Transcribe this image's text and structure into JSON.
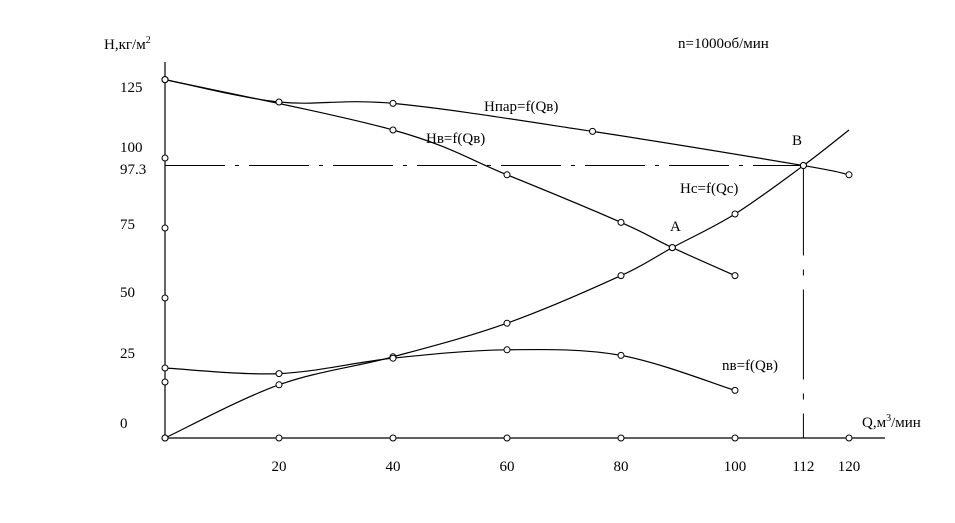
{
  "chart_data": {
    "type": "line",
    "title": "n=1000об/мин",
    "ylabel": "H,кг/м",
    "ylabel_sup": "2",
    "xlabel": "Q,м",
    "xlabel_sup": "3",
    "xlabel_tail": "/мин",
    "xlim": [
      0,
      128
    ],
    "ylim": [
      0,
      135
    ],
    "x_ticks": [
      "20",
      "40",
      "60",
      "80",
      "100",
      "112",
      "120"
    ],
    "y_ticks": [
      "0",
      "25",
      "50",
      "75",
      "100",
      "125"
    ],
    "y_extra_tick": "97.3",
    "series": [
      {
        "name": "Hпар=f(Qв)",
        "points": [
          [
            0,
            128
          ],
          [
            20,
            120
          ],
          [
            40,
            119.5
          ],
          [
            75,
            109.5
          ],
          [
            112,
            97.3
          ],
          [
            120,
            94
          ]
        ]
      },
      {
        "name": "Hв=f(Qв)",
        "points": [
          [
            0,
            128
          ],
          [
            40,
            110
          ],
          [
            60,
            94
          ],
          [
            80,
            77
          ],
          [
            89,
            68
          ],
          [
            100,
            58
          ]
        ]
      },
      {
        "name": "Hc=f(Qc)",
        "points": [
          [
            0,
            0
          ],
          [
            20,
            19
          ],
          [
            40,
            29
          ],
          [
            60,
            41
          ],
          [
            80,
            58
          ],
          [
            89,
            68
          ],
          [
            100,
            80
          ],
          [
            112,
            97.3
          ],
          [
            120,
            110
          ]
        ],
        "markers": [
          [
            0,
            0
          ],
          [
            20,
            19
          ],
          [
            40,
            29
          ],
          [
            60,
            41
          ],
          [
            80,
            58
          ],
          [
            89,
            68
          ],
          [
            100,
            80
          ],
          [
            112,
            97.3
          ]
        ]
      },
      {
        "name": "nв=f(Qв)",
        "points": [
          [
            0,
            25
          ],
          [
            20,
            23
          ],
          [
            40,
            28.5
          ],
          [
            60,
            31.5
          ],
          [
            80,
            29.5
          ],
          [
            100,
            17
          ]
        ]
      }
    ],
    "points_labels": [
      {
        "label": "A",
        "x": 89,
        "y": 68
      },
      {
        "label": "B",
        "x": 112,
        "y": 97.3
      }
    ],
    "y_axis_markers": [
      128,
      100,
      75,
      50,
      20
    ],
    "x_axis_markers": [
      20,
      40,
      60,
      80,
      100,
      120
    ],
    "guide_value": 97.3,
    "guide_x": 112
  }
}
